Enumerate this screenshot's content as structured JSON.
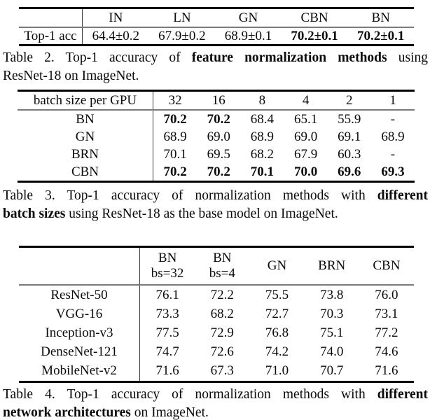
{
  "style": {
    "background": "#ffffff",
    "text_color": "#0a0a0a",
    "toprule_color": "#000000",
    "midrule_color": "#7a7a7a",
    "vline_color": "#3c3c3c"
  },
  "tables": [
    {
      "id": "table2",
      "first_col_width": 91,
      "corner_label": "",
      "columns": [
        [
          "IN"
        ],
        [
          "LN"
        ],
        [
          "GN"
        ],
        [
          "CBN"
        ],
        [
          "BN"
        ]
      ],
      "rows": [
        {
          "label": "Top-1 acc",
          "cells": [
            {
              "t": "64.4±0.2"
            },
            {
              "t": "67.9±0.2"
            },
            {
              "t": "68.9±0.1"
            },
            {
              "t": "70.2±0.1",
              "b": true
            },
            {
              "t": "70.2±0.1",
              "b": true
            }
          ]
        }
      ]
    },
    {
      "id": "table3",
      "first_col_width": 194,
      "corner_label": "batch size per GPU",
      "columns": [
        [
          "32"
        ],
        [
          "16"
        ],
        [
          "8"
        ],
        [
          "4"
        ],
        [
          "2"
        ],
        [
          "1"
        ]
      ],
      "rows": [
        {
          "label": "BN",
          "cells": [
            {
              "t": "70.2",
              "b": true
            },
            {
              "t": "70.2",
              "b": true
            },
            {
              "t": "68.4"
            },
            {
              "t": "65.1"
            },
            {
              "t": "55.9"
            },
            {
              "t": "-"
            }
          ]
        },
        {
          "label": "GN",
          "cells": [
            {
              "t": "68.9"
            },
            {
              "t": "69.0"
            },
            {
              "t": "68.9"
            },
            {
              "t": "69.0"
            },
            {
              "t": "69.1"
            },
            {
              "t": "68.9"
            }
          ]
        },
        {
          "label": "BRN",
          "cells": [
            {
              "t": "70.1"
            },
            {
              "t": "69.5"
            },
            {
              "t": "68.2"
            },
            {
              "t": "67.9"
            },
            {
              "t": "60.3"
            },
            {
              "t": "-"
            }
          ]
        },
        {
          "label": "CBN",
          "cells": [
            {
              "t": "70.2",
              "b": true
            },
            {
              "t": "70.2",
              "b": true
            },
            {
              "t": "70.1",
              "b": true
            },
            {
              "t": "70.0",
              "b": true
            },
            {
              "t": "69.6",
              "b": true
            },
            {
              "t": "69.3",
              "b": true
            }
          ]
        }
      ]
    },
    {
      "id": "table4",
      "first_col_width": 173,
      "corner_label": "",
      "columns": [
        [
          "BN",
          "bs=32"
        ],
        [
          "BN",
          "bs=4"
        ],
        [
          "GN"
        ],
        [
          "BRN"
        ],
        [
          "CBN"
        ]
      ],
      "rows": [
        {
          "label": "ResNet-50",
          "cells": [
            {
              "t": "76.1"
            },
            {
              "t": "72.2"
            },
            {
              "t": "75.5"
            },
            {
              "t": "73.8"
            },
            {
              "t": "76.0"
            }
          ]
        },
        {
          "label": "VGG-16",
          "cells": [
            {
              "t": "73.3"
            },
            {
              "t": "68.2"
            },
            {
              "t": "72.7"
            },
            {
              "t": "70.3"
            },
            {
              "t": "73.1"
            }
          ]
        },
        {
          "label": "Inception-v3",
          "cells": [
            {
              "t": "77.5"
            },
            {
              "t": "72.9"
            },
            {
              "t": "76.8"
            },
            {
              "t": "75.1"
            },
            {
              "t": "77.2"
            }
          ]
        },
        {
          "label": "DenseNet-121",
          "cells": [
            {
              "t": "74.7"
            },
            {
              "t": "72.6"
            },
            {
              "t": "74.2"
            },
            {
              "t": "74.0"
            },
            {
              "t": "74.6"
            }
          ]
        },
        {
          "label": "MobileNet-v2",
          "cells": [
            {
              "t": "71.6"
            },
            {
              "t": "67.3"
            },
            {
              "t": "71.0"
            },
            {
              "t": "70.7"
            },
            {
              "t": "71.6"
            }
          ]
        }
      ]
    }
  ],
  "captions": [
    {
      "id": "caption-table2",
      "lines": [
        {
          "justify": true,
          "parts": [
            {
              "t": "Table 2. Top-1 accuracy of "
            },
            {
              "t": "feature normalization methods",
              "b": true
            },
            {
              "t": " using"
            }
          ]
        },
        {
          "justify": false,
          "parts": [
            {
              "t": "ResNet-18 on ImageNet."
            }
          ]
        }
      ]
    },
    {
      "id": "caption-table3",
      "lines": [
        {
          "justify": true,
          "parts": [
            {
              "t": "Table 3. Top-1 accuracy of normalization methods with "
            },
            {
              "t": "different",
              "b": true
            }
          ]
        },
        {
          "justify": false,
          "parts": [
            {
              "t": "batch sizes",
              "b": true
            },
            {
              "t": " using ResNet-18 as the base model on ImageNet."
            }
          ]
        }
      ]
    },
    {
      "id": "caption-table4",
      "lines": [
        {
          "justify": true,
          "parts": [
            {
              "t": "Table 4. Top-1 accuracy of normalization methods with "
            },
            {
              "t": "different",
              "b": true
            }
          ]
        },
        {
          "justify": false,
          "parts": [
            {
              "t": "network architectures",
              "b": true
            },
            {
              "t": " on ImageNet."
            }
          ]
        }
      ]
    }
  ]
}
